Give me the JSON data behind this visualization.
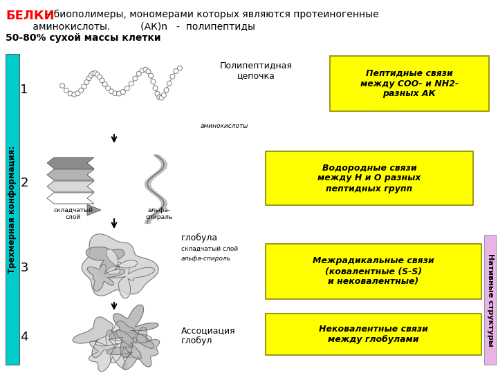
{
  "bg_color": "#ffffff",
  "title_belki": "БЕЛКИ",
  "title_belki_color": "#ff0000",
  "title_rest": " – биополимеры, мономерами которых являются протеиногенные",
  "title_line2": "         аминокислоты.          (АК)n   -  полипептиды",
  "title_line3": "50-80% сухой массы клетки",
  "cyan_bar_color": "#00cccc",
  "cyan_bar_text": "Трехмерная конформация:",
  "pink_bar_color": "#e8b4e8",
  "pink_bar_text": "Нативные структуры",
  "yellow_color": "#ffff00",
  "label1": "Полипептидная\nцепочка",
  "box1_text": "Пептидные связи\nмежду COO- и NH2-\nразных АК",
  "num1": "1",
  "num2": "2",
  "num3": "3",
  "num4": "4",
  "label2_left": "складчатый\nслой",
  "label2_right": "альфа-\nспираль",
  "box2_text": "Водородные связи\nмежду H и O разных\nпептидных групп",
  "label3": "глобула",
  "label3_subleft1": "складчатый слой",
  "label3_subleft2": "альфа-спироль",
  "box3_text": "Межрадикальные связи\n(ковалентные (S-S)\nи нековалентные)",
  "label4": "Ассоциация\nглобул",
  "box4_text": "Нековалентные связи\nмежду глобулами",
  "aminokisloty": "аминокислоты"
}
